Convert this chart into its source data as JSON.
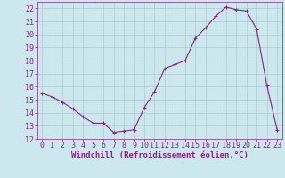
{
  "x": [
    0,
    1,
    2,
    3,
    4,
    5,
    6,
    7,
    8,
    9,
    10,
    11,
    12,
    13,
    14,
    15,
    16,
    17,
    18,
    19,
    20,
    21,
    22,
    23
  ],
  "y": [
    15.5,
    15.2,
    14.8,
    14.3,
    13.7,
    13.2,
    13.2,
    12.5,
    12.6,
    12.7,
    14.4,
    15.6,
    17.4,
    17.7,
    18.0,
    19.7,
    20.5,
    21.4,
    22.1,
    21.9,
    21.8,
    20.4,
    16.1,
    12.7
  ],
  "line_color": "#882288",
  "marker": "+",
  "marker_size": 3,
  "bg_color": "#cce8ee",
  "grid_color": "#aacccc",
  "tick_color": "#882288",
  "label_color": "#882288",
  "xlabel": "Windchill (Refroidissement éolien,°C)",
  "ylim": [
    12,
    22.5
  ],
  "yticks": [
    12,
    13,
    14,
    15,
    16,
    17,
    18,
    19,
    20,
    21,
    22
  ],
  "xticks": [
    0,
    1,
    2,
    3,
    4,
    5,
    6,
    7,
    8,
    9,
    10,
    11,
    12,
    13,
    14,
    15,
    16,
    17,
    18,
    19,
    20,
    21,
    22,
    23
  ],
  "xlabel_fontsize": 6.5,
  "tick_fontsize": 6.0
}
